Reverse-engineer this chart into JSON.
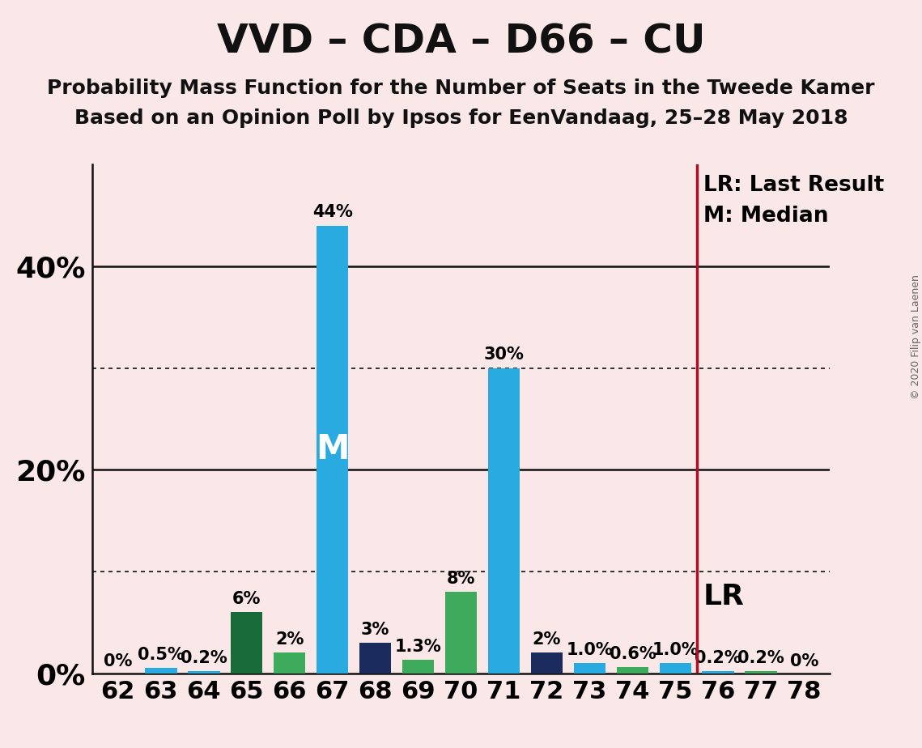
{
  "title": "VVD – CDA – D66 – CU",
  "subtitle1": "Probability Mass Function for the Number of Seats in the Tweede Kamer",
  "subtitle2": "Based on an Opinion Poll by Ipsos for EenVandaag, 25–28 May 2018",
  "copyright": "© 2020 Filip van Laenen",
  "seats": [
    62,
    63,
    64,
    65,
    66,
    67,
    68,
    69,
    70,
    71,
    72,
    73,
    74,
    75,
    76,
    77,
    78
  ],
  "values": [
    0.0,
    0.5,
    0.2,
    6.0,
    2.0,
    44.0,
    3.0,
    1.3,
    8.0,
    30.0,
    2.0,
    1.0,
    0.6,
    1.0,
    0.2,
    0.2,
    0.0
  ],
  "labels": [
    "0%",
    "0.5%",
    "0.2%",
    "6%",
    "2%",
    "44%",
    "3%",
    "1.3%",
    "8%",
    "30%",
    "2%",
    "1.0%",
    "0.6%",
    "1.0%",
    "0.2%",
    "0.2%",
    "0%"
  ],
  "bar_colors": [
    "#29ABE2",
    "#29ABE2",
    "#29ABE2",
    "#1A6B3A",
    "#3DAA5C",
    "#29ABE2",
    "#1C2B5E",
    "#3DAA5C",
    "#3DAA5C",
    "#29ABE2",
    "#1C2B5E",
    "#29ABE2",
    "#3DAA5C",
    "#29ABE2",
    "#29ABE2",
    "#3DAA5C",
    "#29ABE2"
  ],
  "median_seat": 67,
  "lr_seat": 76,
  "lr_label": "LR",
  "lr_legend": "LR: Last Result",
  "m_legend": "M: Median",
  "background_color": "#FAE8E8",
  "ylim_max": 50,
  "dotted_yticks": [
    10,
    30
  ],
  "solid_yticks": [
    20,
    40
  ],
  "lr_line_color": "#AA1122",
  "title_fontsize": 36,
  "subtitle_fontsize": 18,
  "label_fontsize": 15,
  "tick_fontsize": 22,
  "yaxis_label_fontsize": 26,
  "legend_fontsize": 19,
  "lr_label_fontsize": 26
}
